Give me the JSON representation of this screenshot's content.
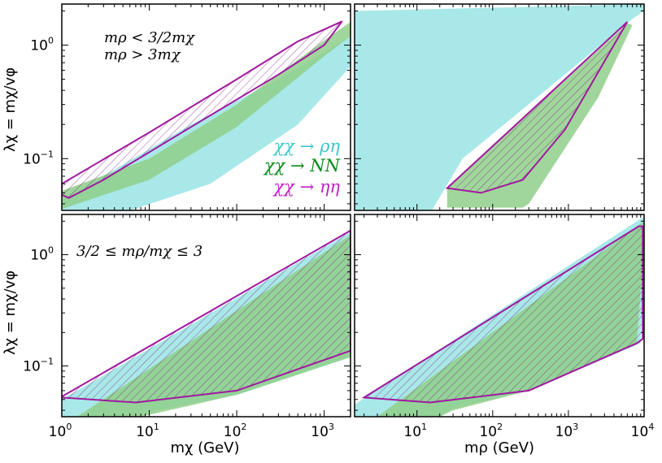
{
  "chart_data": {
    "type": "area",
    "layout": "2x2",
    "ylabel": "λχ = mχ/vφ",
    "ylim": [
      0.035,
      2.3
    ],
    "y_ticks": [
      {
        "value": 1,
        "label": "10",
        "sup": "0"
      },
      {
        "value": 0.1,
        "label": "10",
        "sup": "−1"
      }
    ],
    "columns": [
      {
        "xlabel": "mχ (GeV)",
        "xlim": [
          1,
          2000
        ],
        "x_ticks": [
          {
            "value": 1,
            "label": "10",
            "sup": "0"
          },
          {
            "value": 10,
            "label": "10",
            "sup": "1"
          },
          {
            "value": 100,
            "label": "10",
            "sup": "2"
          },
          {
            "value": 1000,
            "label": "10",
            "sup": "3"
          }
        ]
      },
      {
        "xlabel": "mρ (GeV)",
        "xlim": [
          1.5,
          10000
        ],
        "x_ticks": [
          {
            "value": 10,
            "label": "10",
            "sup": "1"
          },
          {
            "value": 100,
            "label": "10",
            "sup": "2"
          },
          {
            "value": 1000,
            "label": "10",
            "sup": "3"
          },
          {
            "value": 10000,
            "label": "10",
            "sup": "4"
          }
        ]
      }
    ],
    "rows": [
      {
        "annotation": [
          "mρ < 3/2mχ",
          "mρ > 3mχ"
        ]
      },
      {
        "annotation": [
          "3/2 ≤ mρ/mχ ≤ 3"
        ]
      }
    ],
    "legend": [
      {
        "label": "χχ → ρη",
        "color": "#3ec6c6"
      },
      {
        "label": "χχ → NN",
        "color": "#0a8a1a"
      },
      {
        "label": "χχ → ηη",
        "color": "#c21fc6"
      }
    ],
    "colors": {
      "rho_eta": "#a9e8e8",
      "NN": "#8fcf8a",
      "eta_eta": "#a1189f"
    },
    "panels": [
      {
        "name": "top-left",
        "row": 0,
        "col": 0,
        "regions": [
          {
            "process": "rho_eta",
            "points": [
              [
                1,
                0.022
              ],
              [
                1,
                0.045
              ],
              [
                4,
                0.08
              ],
              [
                30,
                0.2
              ],
              [
                300,
                0.5
              ],
              [
                2000,
                1.2
              ],
              [
                2000,
                0.65
              ],
              [
                500,
                0.2
              ],
              [
                50,
                0.06
              ]
            ]
          },
          {
            "process": "NN",
            "points": [
              [
                1,
                0.036
              ],
              [
                1,
                0.052
              ],
              [
                10,
                0.1
              ],
              [
                100,
                0.3
              ],
              [
                1000,
                1.1
              ],
              [
                2000,
                1.6
              ],
              [
                2000,
                1.2
              ],
              [
                1000,
                0.8
              ],
              [
                100,
                0.19
              ],
              [
                10,
                0.065
              ]
            ]
          },
          {
            "process": "eta_eta",
            "hatched": true,
            "points": [
              [
                1,
                0.048
              ],
              [
                1,
                0.06
              ],
              [
                10,
                0.17
              ],
              [
                100,
                0.5
              ],
              [
                500,
                1.08
              ],
              [
                1600,
                1.62
              ],
              [
                1000,
                1.0
              ],
              [
                300,
                0.55
              ],
              [
                30,
                0.19
              ],
              [
                3,
                0.065
              ],
              [
                1.2,
                0.045
              ]
            ]
          }
        ]
      },
      {
        "name": "top-right",
        "row": 0,
        "col": 1,
        "regions": [
          {
            "process": "rho_eta",
            "points": [
              [
                1.5,
                0.021
              ],
              [
                1.5,
                2.0
              ],
              [
                10000,
                2.3
              ],
              [
                10000,
                2.0
              ],
              [
                7000,
                1.7
              ],
              [
                40,
                0.1
              ],
              [
                10,
                0.021
              ]
            ]
          },
          {
            "process": "NN",
            "points": [
              [
                25,
                0.037
              ],
              [
                25,
                0.055
              ],
              [
                6000,
                1.55
              ],
              [
                7000,
                1.5
              ],
              [
                2500,
                0.35
              ],
              [
                300,
                0.04
              ],
              [
                250,
                0.037
              ]
            ]
          },
          {
            "process": "eta_eta",
            "hatched": true,
            "points": [
              [
                25,
                0.055
              ],
              [
                6000,
                1.6
              ],
              [
                900,
                0.18
              ],
              [
                250,
                0.065
              ],
              [
                70,
                0.05
              ]
            ]
          }
        ]
      },
      {
        "name": "bottom-left",
        "row": 1,
        "col": 0,
        "regions": [
          {
            "process": "rho_eta",
            "points": [
              [
                1,
                0.035
              ],
              [
                1,
                0.05
              ],
              [
                2000,
                1.6
              ],
              [
                2000,
                0.12
              ],
              [
                100,
                0.055
              ],
              [
                5,
                0.035
              ]
            ]
          },
          {
            "process": "NN",
            "points": [
              [
                1.5,
                0.035
              ],
              [
                2000,
                1.5
              ],
              [
                2000,
                0.12
              ],
              [
                100,
                0.055
              ],
              [
                8,
                0.035
              ]
            ]
          },
          {
            "process": "eta_eta",
            "hatched": true,
            "points": [
              [
                1,
                0.053
              ],
              [
                2000,
                1.65
              ],
              [
                2000,
                0.137
              ],
              [
                100,
                0.06
              ],
              [
                7,
                0.047
              ],
              [
                1,
                0.052
              ]
            ]
          }
        ]
      },
      {
        "name": "bottom-right",
        "row": 1,
        "col": 1,
        "regions": [
          {
            "process": "rho_eta",
            "points": [
              [
                1.5,
                0.035
              ],
              [
                1.5,
                0.045
              ],
              [
                10000,
                2.2
              ],
              [
                10000,
                1.5
              ],
              [
                9000,
                0.16
              ],
              [
                300,
                0.06
              ],
              [
                30,
                0.042
              ],
              [
                20,
                0.035
              ]
            ]
          },
          {
            "process": "NN",
            "points": [
              [
                3,
                0.035
              ],
              [
                10000,
                2.0
              ],
              [
                10000,
                1.3
              ],
              [
                8000,
                0.16
              ],
              [
                300,
                0.06
              ],
              [
                30,
                0.04
              ],
              [
                20,
                0.035
              ]
            ]
          },
          {
            "process": "eta_eta",
            "hatched": true,
            "points": [
              [
                2,
                0.052
              ],
              [
                8500,
                1.8
              ],
              [
                9600,
                1.8
              ],
              [
                9600,
                0.175
              ],
              [
                8000,
                0.16
              ],
              [
                300,
                0.06
              ],
              [
                15,
                0.047
              ]
            ]
          }
        ]
      }
    ]
  }
}
